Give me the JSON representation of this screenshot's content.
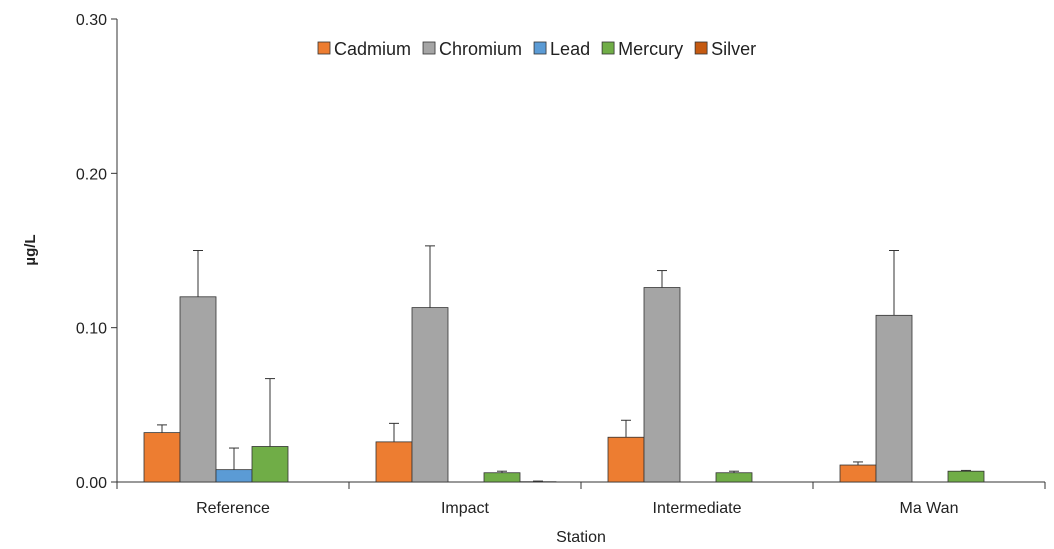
{
  "chart_data": {
    "type": "bar",
    "title": "",
    "xlabel": "Station",
    "ylabel": "µg/L",
    "ylim": [
      0,
      0.3
    ],
    "yticks": [
      "0.00",
      "0.10",
      "0.20",
      "0.30"
    ],
    "ytick_values": [
      0,
      0.1,
      0.2,
      0.3
    ],
    "grid": false,
    "legend_position": "top-center",
    "categories": [
      "Reference",
      "Impact",
      "Intermediate",
      "Ma Wan"
    ],
    "series": [
      {
        "name": "Cadmium",
        "color": "#ED7D31",
        "values": [
          0.032,
          0.026,
          0.029,
          0.011
        ],
        "errors": [
          0.005,
          0.012,
          0.011,
          0.002
        ]
      },
      {
        "name": "Chromium",
        "color": "#A5A5A5",
        "values": [
          0.12,
          0.113,
          0.126,
          0.108
        ],
        "errors": [
          0.03,
          0.04,
          0.011,
          0.042
        ]
      },
      {
        "name": "Lead",
        "color": "#5B9BD5",
        "values": [
          0.008,
          0.0,
          0.0,
          0.0
        ],
        "errors": [
          0.014,
          0.0,
          0.0,
          0.0
        ]
      },
      {
        "name": "Mercury",
        "color": "#70AD47",
        "values": [
          0.023,
          0.006,
          0.006,
          0.007
        ],
        "errors": [
          0.044,
          0.001,
          0.001,
          0.0005
        ]
      },
      {
        "name": "Silver",
        "color": "#C55A11",
        "values": [
          0.0,
          0.0002,
          0.0,
          0.0
        ],
        "errors": [
          0.0,
          0.0004,
          0.0,
          0.0
        ]
      }
    ]
  }
}
